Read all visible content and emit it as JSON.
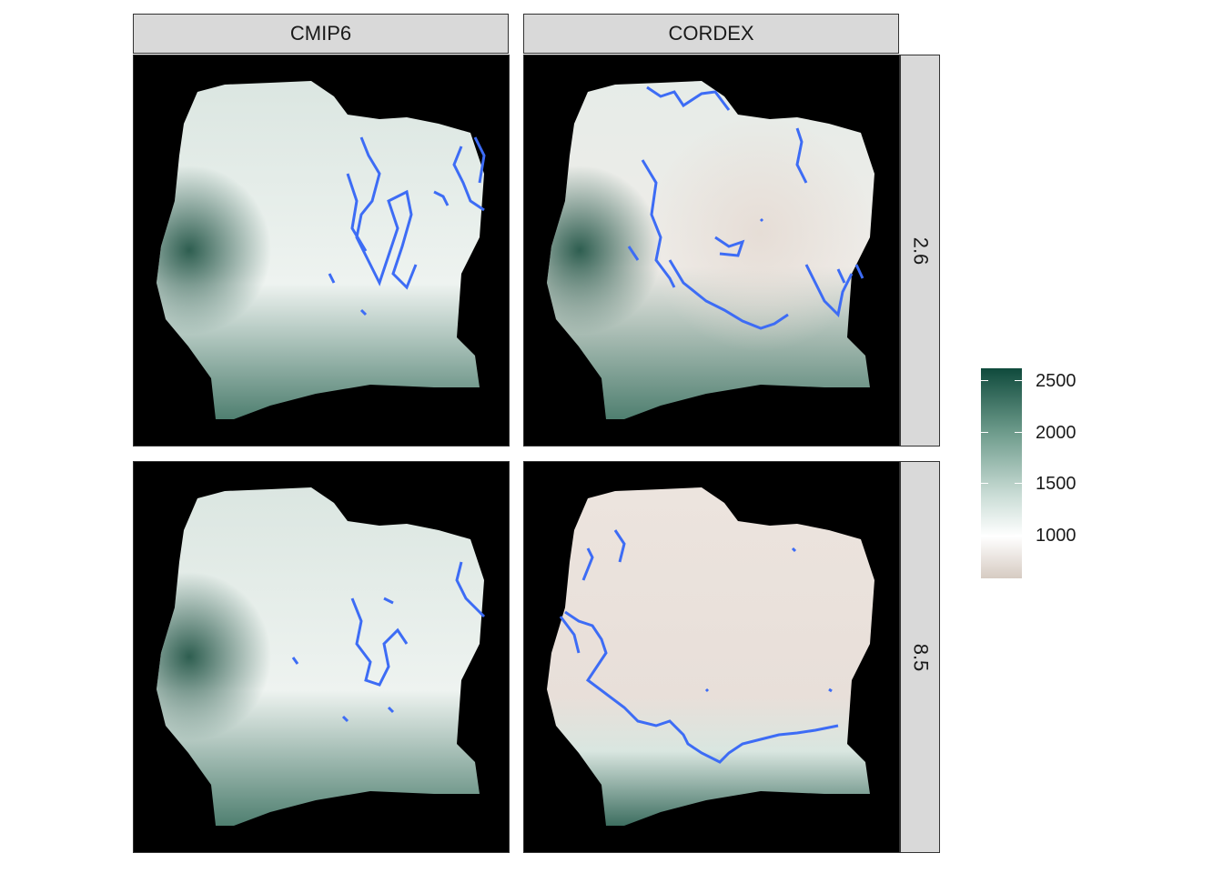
{
  "facets": {
    "columns": [
      "CMIP6",
      "CORDEX"
    ],
    "rows": [
      "2.6",
      "8.5"
    ]
  },
  "legend": {
    "ticks": [
      "2500",
      "2000",
      "1500",
      "1000"
    ],
    "colors": {
      "high": "#0f4a3c",
      "mid_high": "#6c9a8a",
      "mid": "#c9dcd5",
      "neutral": "#ffffff",
      "low": "#d6cbc2"
    }
  },
  "map_colors": {
    "background": "#000000",
    "contour": "#3d6cf5",
    "panel_fills": {
      "cmip6_2_6": "#dbe6e1",
      "cordex_2_6": "#e6ece8",
      "cmip6_8_5": "#dbe6e1",
      "cordex_8_5": "#ece4de"
    }
  }
}
